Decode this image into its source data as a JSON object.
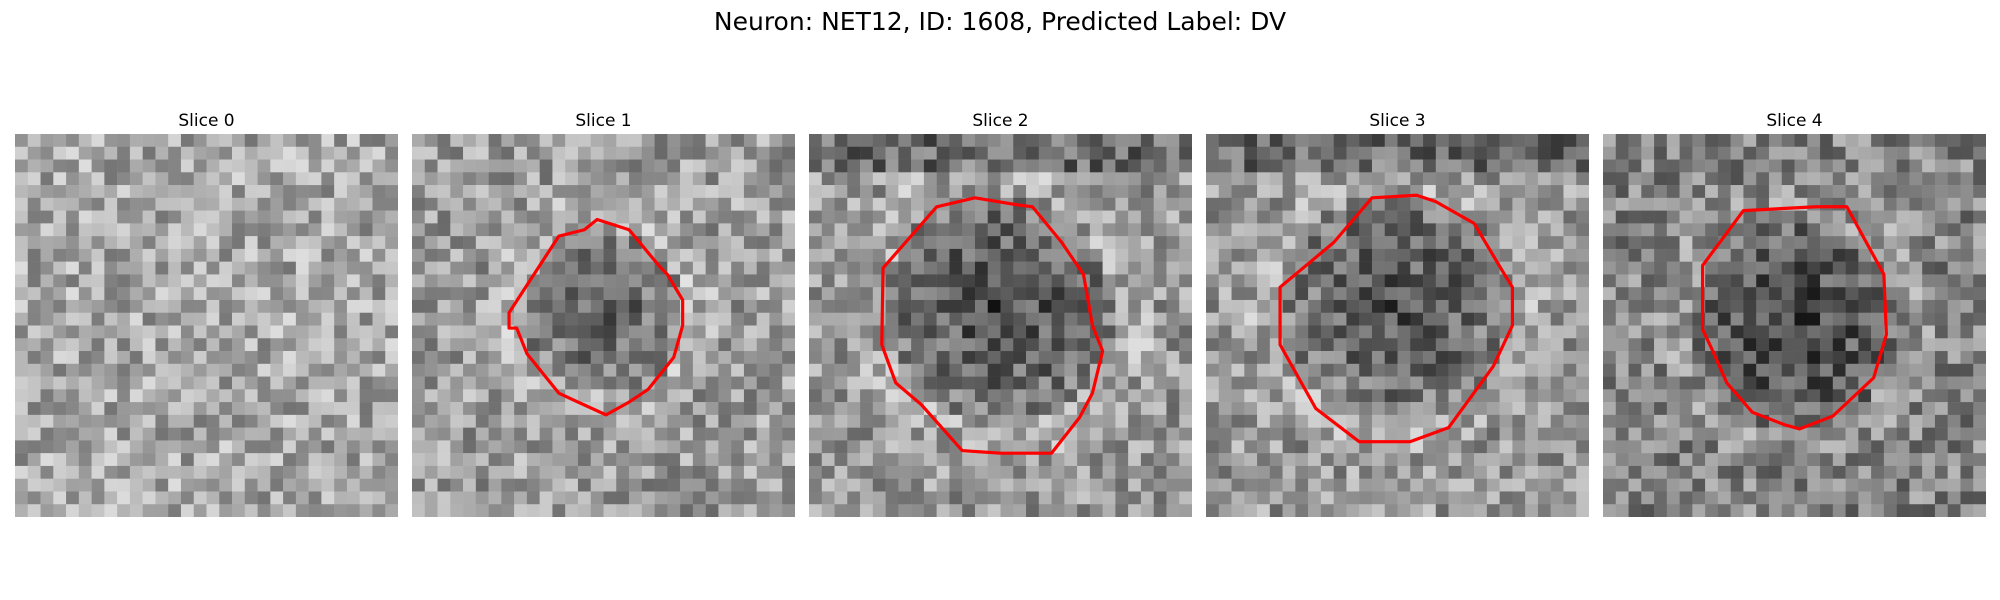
{
  "figure": {
    "title": "Neuron: NET12, ID: 1608, Predicted Label: DV",
    "contour_color": "#ff0000"
  },
  "panels": [
    {
      "title": "Slice 0",
      "has_contour": false,
      "image": "grayscale-noise-patch"
    },
    {
      "title": "Slice 1",
      "has_contour": true,
      "image": "grayscale-noise-patch"
    },
    {
      "title": "Slice 2",
      "has_contour": true,
      "image": "grayscale-noise-patch"
    },
    {
      "title": "Slice 3",
      "has_contour": true,
      "image": "grayscale-noise-patch"
    },
    {
      "title": "Slice 4",
      "has_contour": true,
      "image": "grayscale-noise-patch"
    }
  ]
}
